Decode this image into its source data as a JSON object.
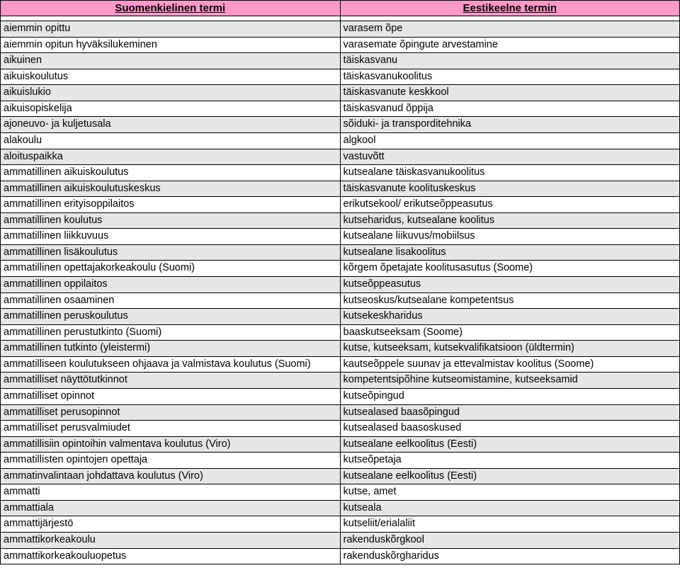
{
  "header": {
    "fi": "Suomenkielinen termi",
    "et": "Eestikeelne termin"
  },
  "colors": {
    "header_bg": "#ff99cc",
    "row_even_bg": "#e6e6e6",
    "row_odd_bg": "#ffffff",
    "border": "#000000",
    "text": "#000000"
  },
  "rows": [
    {
      "fi": "aiemmin opittu",
      "et": "varasem õpe"
    },
    {
      "fi": "aiemmin opitun hyväksilukeminen",
      "et": "varasemate õpingute arvestamine"
    },
    {
      "fi": "aikuinen",
      "et": "täiskasvanu"
    },
    {
      "fi": "aikuiskoulutus",
      "et": "täiskasvanukoolitus"
    },
    {
      "fi": "aikuislukio",
      "et": "täiskasvanute keskkool"
    },
    {
      "fi": "aikuisopiskelija",
      "et": "täiskasvanud õppija"
    },
    {
      "fi": "ajoneuvo- ja kuljetusala",
      "et": "sõiduki- ja transporditehnika"
    },
    {
      "fi": "alakoulu",
      "et": "algkool"
    },
    {
      "fi": "aloituspaikka",
      "et": "vastuvõtt"
    },
    {
      "fi": "ammatillinen aikuiskoulutus",
      "et": "kutsealane täiskasvanukoolitus"
    },
    {
      "fi": "ammatillinen aikuiskoulutuskeskus",
      "et": "täiskasvanute koolituskeskus"
    },
    {
      "fi": "ammatillinen erityisoppilaitos",
      "et": "erikutsekool/ erikutseõppeasutus"
    },
    {
      "fi": "ammatillinen koulutus",
      "et": "kutseharidus, kutsealane koolitus"
    },
    {
      "fi": "ammatillinen liikkuvuus",
      "et": "kutsealane liikuvus/mobiilsus"
    },
    {
      "fi": "ammatillinen lisäkoulutus",
      "et": "kutsealane lisakoolitus"
    },
    {
      "fi": "ammatillinen opettajakorkeakoulu (Suomi)",
      "et": "kõrgem õpetajate koolitusasutus (Soome)"
    },
    {
      "fi": "ammatillinen oppilaitos",
      "et": "kutseõppeasutus"
    },
    {
      "fi": "ammatillinen osaaminen",
      "et": "kutseoskus/kutsealane kompetentsus"
    },
    {
      "fi": "ammatillinen peruskoulutus",
      "et": "kutsekeskharidus"
    },
    {
      "fi": "ammatillinen perustutkinto (Suomi)",
      "et": "baaskutseeksam (Soome)"
    },
    {
      "fi": "ammatillinen tutkinto (yleistermi)",
      "et": "kutse, kutseeksam, kutsekvalifikatsioon (üldtermin)"
    },
    {
      "fi": "ammatilliseen koulutukseen ohjaava ja valmistava koulutus (Suomi)",
      "et": "kautseõppele suunav ja ettevalmistav koolitus (Soome)"
    },
    {
      "fi": "ammatilliset näyttötutkinnot",
      "et": "kompetentsipõhine kutseomistamine, kutseeksamid"
    },
    {
      "fi": "ammatilliset opinnot",
      "et": "kutseõpingud"
    },
    {
      "fi": "ammatilliset perusopinnot",
      "et": "kutsealased baasõpingud"
    },
    {
      "fi": "ammatilliset perusvalmiudet",
      "et": "kutsealased baasoskused"
    },
    {
      "fi": "ammatillisiin opintoihin valmentava koulutus (Viro)",
      "et": "kutsealane eelkoolitus (Eesti)"
    },
    {
      "fi": "ammatillisten opintojen opettaja",
      "et": "kutseõpetaja"
    },
    {
      "fi": "ammatinvalintaan johdattava koulutus (Viro)",
      "et": "kutsealane eelkoolitus (Eesti)"
    },
    {
      "fi": "ammatti",
      "et": "kutse, amet"
    },
    {
      "fi": "ammattiala",
      "et": "kutseala"
    },
    {
      "fi": "ammattijärjestö",
      "et": "kutseliit/erialaliit"
    },
    {
      "fi": "ammattikorkeakoulu",
      "et": "rakenduskõrgkool"
    },
    {
      "fi": "ammattikorkeakouluopetus",
      "et": "rakenduskõrgharidus"
    }
  ]
}
